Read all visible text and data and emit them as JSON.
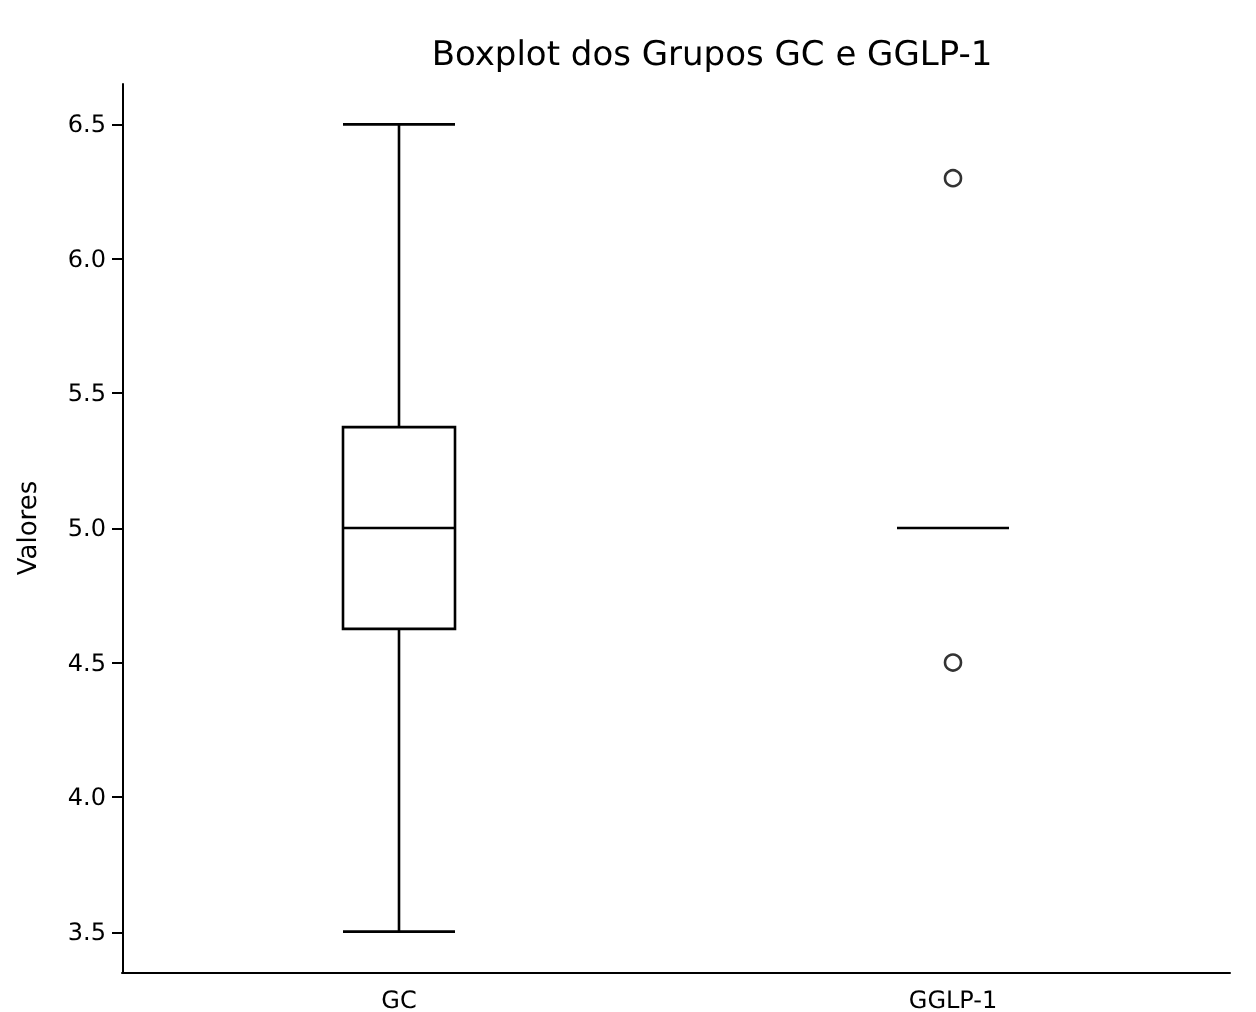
{
  "chart_data": {
    "type": "box",
    "title": "Boxplot dos Grupos GC e GGLP-1",
    "ylabel": "Valores",
    "categories": [
      "GC",
      "GGLP-1"
    ],
    "series": [
      {
        "color": "#000000",
        "boxes": [
          {
            "low": 3.5,
            "q1": 4.625,
            "median": 5.0,
            "q3": 5.375,
            "high": 6.5
          },
          {
            "low": 5.0,
            "q1": 5.0,
            "median": 5.0,
            "q3": 5.0,
            "high": 5.0,
            "outliers": [
              4.5,
              6.3
            ]
          }
        ]
      }
    ],
    "ylim": [
      3.35,
      6.65
    ],
    "yticks": [
      3.5,
      {
        "value": 4,
        "label": "4.0"
      },
      4.5,
      {
        "value": 5,
        "label": "5.0"
      },
      5.5,
      {
        "value": 6,
        "label": "6.0"
      },
      6.5
    ],
    "grid": false
  }
}
